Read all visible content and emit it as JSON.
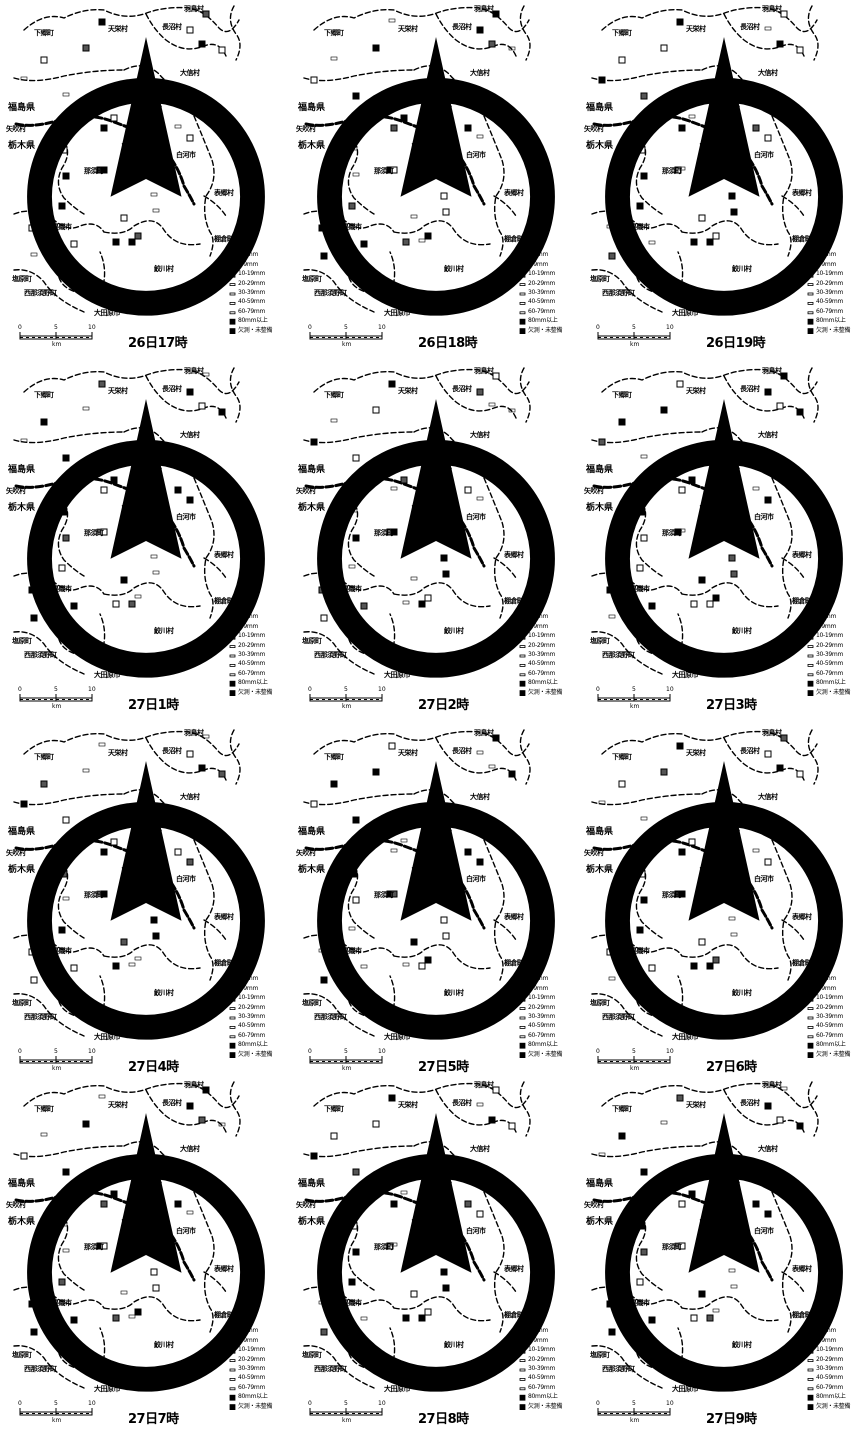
{
  "map": {
    "place_labels": {
      "shimogo": "下郷町",
      "tenei": "天栄村",
      "nagaoka": "長沼村",
      "hatsuyama": "羽鳥村",
      "otama": "大信村",
      "fukushima": "福島県",
      "nishigo": "西郷村",
      "higashi": "東村",
      "nakajima": "矢吹村",
      "tochigi": "栃木県",
      "shirakawa": "白河市",
      "nasu": "那須町",
      "omotego": "表郷村",
      "tanagura": "棚倉町",
      "kuroiso": "黒磯市",
      "tomogawa": "鮫川村",
      "shiobara": "塩原町",
      "nishinasuno": "西那須野町",
      "otawara": "大田原市"
    },
    "scale": {
      "zero": "0",
      "five": "5",
      "ten": "10",
      "unit": "km"
    },
    "legend": [
      {
        "label": "0mm",
        "style": "open"
      },
      {
        "label": "1-4mm",
        "style": "filled"
      },
      {
        "label": "5-9mm",
        "style": "half"
      },
      {
        "label": "10-19mm",
        "style": "half"
      },
      {
        "label": "20-29mm",
        "style": "dash"
      },
      {
        "label": "30-39mm",
        "style": "dash"
      },
      {
        "label": "40-59mm",
        "style": "tick"
      },
      {
        "label": "60-79mm",
        "style": "tick"
      },
      {
        "label": "80mm以上",
        "style": "filled"
      },
      {
        "label": "欠測・未整備",
        "style": "filled"
      }
    ],
    "legend_extra_tanagura": "棚倉町",
    "panels": [
      {
        "time": "26日17時"
      },
      {
        "time": "26日18時"
      },
      {
        "time": "26日19時"
      },
      {
        "time": "27日1時"
      },
      {
        "time": "27日2時"
      },
      {
        "time": "27日3時"
      },
      {
        "time": "27日4時"
      },
      {
        "time": "27日5時"
      },
      {
        "time": "27日6時"
      },
      {
        "time": "27日7時"
      },
      {
        "time": "27日8時"
      },
      {
        "time": "27日9時"
      }
    ],
    "colors": {
      "ink": "#000000",
      "paper": "#ffffff"
    }
  }
}
